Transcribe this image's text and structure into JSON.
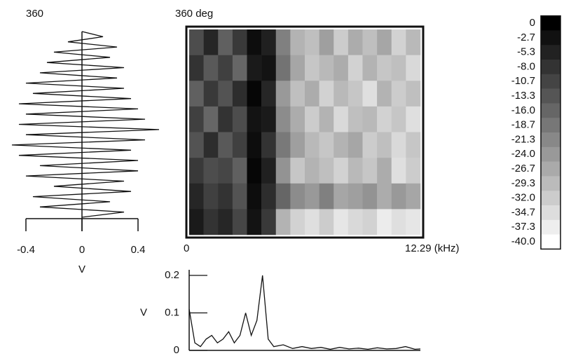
{
  "chart_data": [
    {
      "type": "line",
      "orientation": "vertical",
      "color": "#111111",
      "xlabel": "V",
      "xlim": [
        -0.4,
        0.4
      ],
      "xticks": [
        -0.4,
        0,
        0.4
      ],
      "ylim": [
        0,
        360
      ],
      "yticks": [
        {
          "value": 360,
          "label": "360"
        }
      ],
      "y": [
        0,
        10,
        20,
        30,
        40,
        50,
        60,
        70,
        80,
        90,
        100,
        110,
        120,
        130,
        140,
        150,
        160,
        170,
        180,
        190,
        200,
        210,
        220,
        230,
        240,
        250,
        260,
        270,
        280,
        290,
        300,
        310,
        320,
        330,
        340,
        350,
        360
      ],
      "values": [
        0,
        0.3,
        -0.3,
        0.2,
        -0.35,
        0.35,
        -0.2,
        0.3,
        -0.4,
        0.4,
        -0.3,
        0.4,
        -0.45,
        0.35,
        -0.5,
        0.45,
        -0.4,
        0.55,
        -0.45,
        0.45,
        -0.4,
        0.4,
        -0.45,
        0.35,
        -0.35,
        0.3,
        -0.4,
        0.25,
        -0.3,
        0.3,
        -0.25,
        0.2,
        -0.2,
        0.25,
        -0.1,
        0.15,
        0
      ]
    },
    {
      "type": "heatmap",
      "xlim": [
        0,
        12.29
      ],
      "xticks": [
        0,
        {
          "value": 12.29,
          "label": "12.29 (kHz)"
        }
      ],
      "ylim": [
        0,
        360
      ],
      "yticks": [
        {
          "value": 360,
          "label": "360 deg"
        }
      ],
      "zlim": [
        -40,
        0
      ],
      "zticks": [
        0,
        -2.7,
        -5.3,
        {
          "value": -8,
          "label": "-8.0"
        },
        -10.7,
        -13.3,
        {
          "value": -16,
          "label": "-16.0"
        },
        -18.7,
        -21.3,
        {
          "value": -24,
          "label": "-24.0"
        },
        -26.7,
        -29.3,
        {
          "value": -32,
          "label": "-32.0"
        },
        -34.7,
        -37.3,
        {
          "value": -40,
          "label": "-40.0"
        }
      ],
      "values": [
        [
          -12,
          -6,
          -15,
          -9,
          -2,
          -5,
          -20,
          -28,
          -30,
          -25,
          -32,
          -27,
          -30,
          -26,
          -33,
          -29
        ],
        [
          -8,
          -14,
          -10,
          -16,
          -4,
          -3,
          -18,
          -26,
          -31,
          -29,
          -27,
          -33,
          -28,
          -31,
          -30,
          -34
        ],
        [
          -15,
          -9,
          -13,
          -7,
          -1,
          -6,
          -24,
          -30,
          -27,
          -33,
          -29,
          -31,
          -35,
          -28,
          -32,
          -30
        ],
        [
          -10,
          -16,
          -8,
          -12,
          -3,
          -4,
          -22,
          -27,
          -32,
          -28,
          -34,
          -30,
          -29,
          -33,
          -31,
          -35
        ],
        [
          -13,
          -7,
          -14,
          -10,
          -2,
          -8,
          -19,
          -25,
          -29,
          -31,
          -28,
          -26,
          -32,
          -30,
          -34,
          -31
        ],
        [
          -9,
          -12,
          -11,
          -15,
          -1,
          -5,
          -23,
          -31,
          -28,
          -30,
          -33,
          -29,
          -31,
          -27,
          -35,
          -32
        ],
        [
          -6,
          -10,
          -8,
          -13,
          -2,
          -7,
          -16,
          -22,
          -24,
          -20,
          -26,
          -25,
          -23,
          -27,
          -24,
          -26
        ],
        [
          -4,
          -8,
          -6,
          -11,
          -3,
          -9,
          -28,
          -33,
          -35,
          -32,
          -36,
          -34,
          -33,
          -37,
          -35,
          -36
        ]
      ]
    },
    {
      "type": "line",
      "orientation": "horizontal",
      "color": "#111111",
      "ylabel": "V",
      "xlim": [
        0,
        12.29
      ],
      "ylim": [
        0,
        0.2
      ],
      "yticks": [
        0,
        0.1,
        0.2
      ],
      "x": [
        0,
        0.3,
        0.6,
        0.9,
        1.2,
        1.5,
        1.8,
        2.1,
        2.4,
        2.7,
        3.0,
        3.3,
        3.6,
        3.9,
        4.2,
        4.5,
        5.0,
        5.5,
        6,
        6.5,
        7,
        7.5,
        8,
        8.5,
        9,
        9.5,
        10,
        10.5,
        11,
        11.5,
        12,
        12.29
      ],
      "values": [
        0.11,
        0.02,
        0.01,
        0.03,
        0.04,
        0.02,
        0.03,
        0.05,
        0.02,
        0.04,
        0.1,
        0.04,
        0.08,
        0.2,
        0.03,
        0.01,
        0.015,
        0.005,
        0.01,
        0.005,
        0.008,
        0.003,
        0.008,
        0.004,
        0.006,
        0.003,
        0.007,
        0.004,
        0.005,
        0.01,
        0.003,
        0.004
      ]
    }
  ]
}
